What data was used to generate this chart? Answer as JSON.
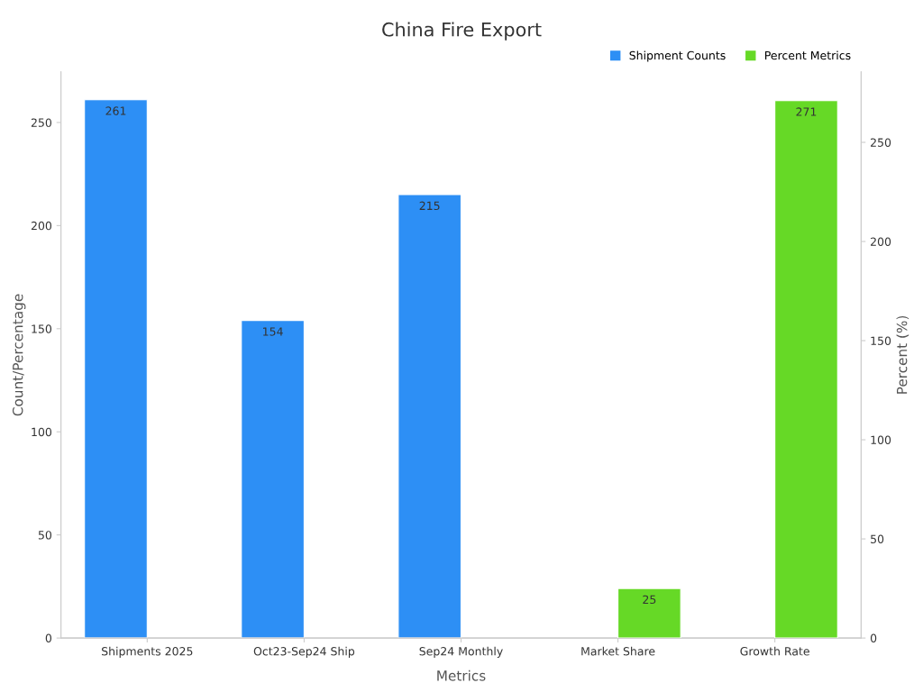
{
  "chart_data": {
    "type": "bar",
    "title": "China Fire Export",
    "xlabel": "Metrics",
    "ylabel": "Count/Percentage",
    "y2label": "Percent (%)",
    "categories": [
      "Shipments 2025",
      "Oct23-Sep24 Ship",
      "Sep24 Monthly",
      "Market Share",
      "Growth Rate"
    ],
    "series": [
      {
        "name": "Shipment Counts",
        "color": "#2d8ff5",
        "values": [
          261,
          154,
          215,
          null,
          null
        ]
      },
      {
        "name": "Percent Metrics",
        "color": "#66d926",
        "axis": "y2",
        "values": [
          null,
          null,
          null,
          25,
          271
        ]
      }
    ],
    "ylim": [
      0,
      274.5
    ],
    "yticks": [
      0,
      50,
      100,
      150,
      200,
      250
    ],
    "y2lim": [
      0,
      285.5
    ],
    "y2ticks": [
      0,
      50,
      100,
      150,
      200,
      250
    ],
    "data_labels": true,
    "grid": false,
    "legend": "top right"
  }
}
